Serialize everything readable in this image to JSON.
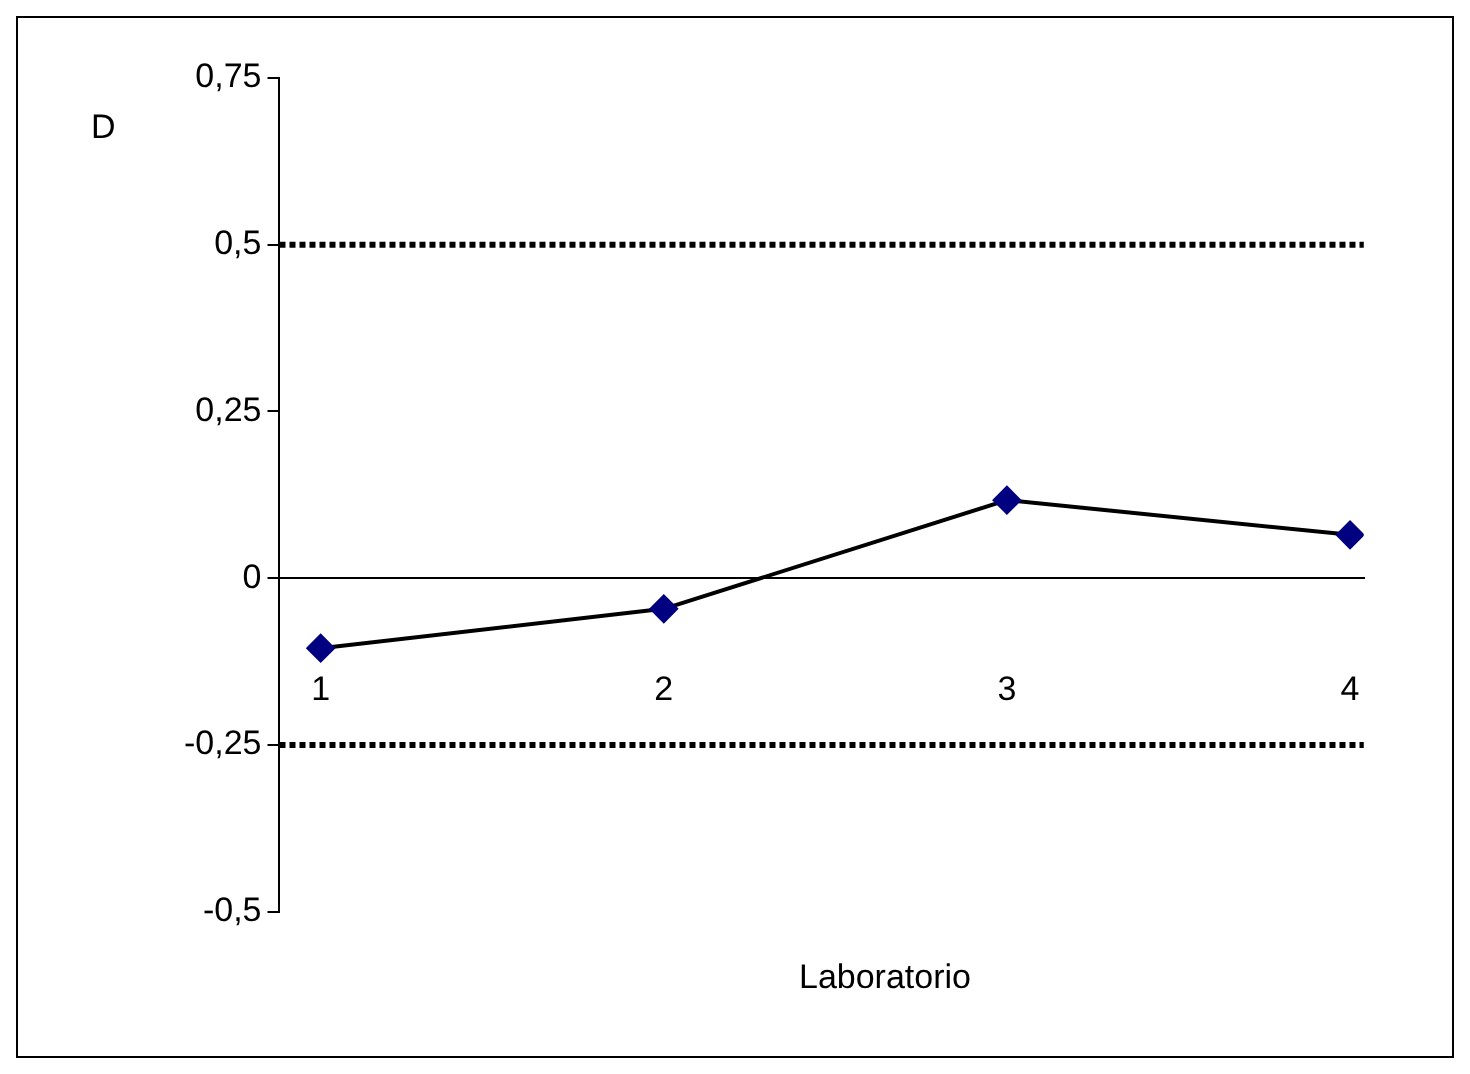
{
  "chart_data": {
    "type": "line",
    "xlabel": "Laboratorio",
    "ylabel": "D",
    "categories": [
      "1",
      "2",
      "3",
      "4"
    ],
    "series": [
      {
        "color": "#000080",
        "values": [
          -0.105,
          -0.046,
          0.117,
          0.065
        ]
      }
    ],
    "ylim": [
      -0.5,
      0.75
    ],
    "yticks": [
      {
        "value": -0.5,
        "label": "-0,5"
      },
      {
        "value": -0.25,
        "label": "-0,25"
      },
      {
        "value": 0,
        "label": "0"
      },
      {
        "value": 0.25,
        "label": "0,25"
      },
      {
        "value": 0.5,
        "label": "0,5"
      },
      {
        "value": 0.75,
        "label": "0,75"
      }
    ],
    "ref_lines": [
      {
        "axis": "y",
        "value": 0.5,
        "color": "#000000",
        "line_style": "dotted"
      },
      {
        "axis": "y",
        "value": -0.25,
        "color": "#000000",
        "line_style": "dotted"
      }
    ],
    "grid": false,
    "legend": false,
    "marker": "diamond",
    "line_style": "solid"
  }
}
